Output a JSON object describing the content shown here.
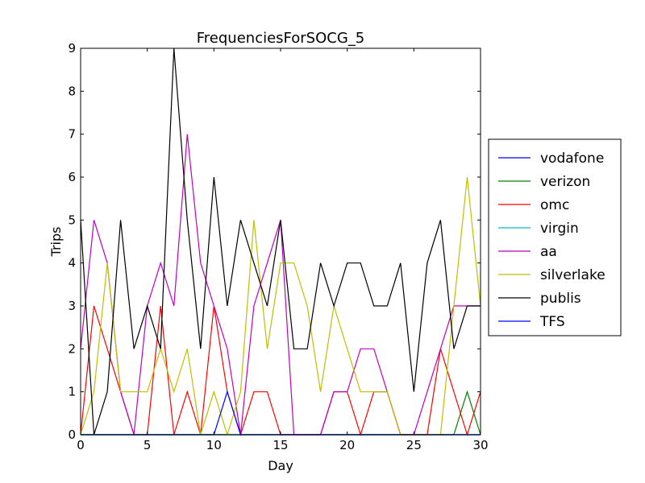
{
  "chart_data": {
    "type": "line",
    "title": "FrequenciesForSOCG_5",
    "xlabel": "Day",
    "ylabel": "Trips",
    "xlim": [
      0,
      30
    ],
    "ylim": [
      0,
      9
    ],
    "xticks": [
      0,
      5,
      10,
      15,
      20,
      25,
      30
    ],
    "yticks": [
      0,
      1,
      2,
      3,
      4,
      5,
      6,
      7,
      8,
      9
    ],
    "grid": false,
    "legend_position": "right, outside plot",
    "x": [
      0,
      1,
      2,
      3,
      4,
      5,
      6,
      7,
      8,
      9,
      10,
      11,
      12,
      13,
      14,
      15,
      16,
      17,
      18,
      19,
      20,
      21,
      22,
      23,
      24,
      25,
      26,
      27,
      28,
      29,
      30
    ],
    "series": [
      {
        "name": "vodafone",
        "color": "#0000ff",
        "values": [
          0,
          0,
          0,
          0,
          0,
          0,
          0,
          0,
          0,
          0,
          0,
          0,
          0,
          0,
          0,
          0,
          0,
          0,
          0,
          0,
          0,
          0,
          0,
          0,
          0,
          0,
          0,
          0,
          0,
          0,
          0
        ]
      },
      {
        "name": "verizon",
        "color": "#008000",
        "values": [
          0,
          0,
          0,
          0,
          0,
          0,
          0,
          0,
          0,
          0,
          0,
          0,
          0,
          0,
          0,
          0,
          0,
          0,
          0,
          0,
          0,
          0,
          0,
          0,
          0,
          0,
          0,
          0,
          0,
          1,
          0
        ]
      },
      {
        "name": "omc",
        "color": "#ff0000",
        "values": [
          0,
          3,
          2,
          1,
          0,
          0,
          3,
          0,
          1,
          0,
          3,
          1,
          0,
          1,
          1,
          0,
          0,
          0,
          0,
          1,
          1,
          0,
          1,
          1,
          0,
          0,
          0,
          2,
          1,
          0,
          1
        ]
      },
      {
        "name": "virgin",
        "color": "#00bfbf",
        "values": [
          0,
          0,
          0,
          0,
          0,
          0,
          0,
          0,
          0,
          0,
          0,
          0,
          0,
          0,
          0,
          0,
          0,
          0,
          0,
          0,
          0,
          0,
          0,
          0,
          0,
          0,
          0,
          0,
          0,
          0,
          0
        ]
      },
      {
        "name": "aa",
        "color": "#bf00bf",
        "values": [
          2,
          5,
          4,
          1,
          0,
          3,
          4,
          3,
          7,
          4,
          3,
          2,
          0,
          3,
          4,
          5,
          0,
          0,
          0,
          1,
          1,
          2,
          2,
          1,
          0,
          0,
          1,
          2,
          3,
          3,
          3
        ]
      },
      {
        "name": "silverlake",
        "color": "#bfbf00",
        "values": [
          0,
          1,
          4,
          1,
          1,
          1,
          2,
          1,
          2,
          0,
          1,
          0,
          1,
          5,
          2,
          4,
          4,
          3,
          1,
          3,
          2,
          1,
          1,
          1,
          0,
          0,
          0,
          0,
          3,
          6,
          3
        ]
      },
      {
        "name": "publis",
        "color": "#000000",
        "values": [
          5,
          0,
          1,
          5,
          2,
          3,
          2,
          9,
          5,
          2,
          6,
          3,
          5,
          4,
          3,
          5,
          2,
          2,
          4,
          3,
          4,
          4,
          3,
          3,
          4,
          1,
          4,
          5,
          2,
          3,
          3
        ]
      },
      {
        "name": "TFS",
        "color": "#0000ff",
        "values": [
          0,
          0,
          0,
          0,
          0,
          0,
          0,
          0,
          0,
          0,
          0,
          1,
          0,
          0,
          0,
          0,
          0,
          0,
          0,
          0,
          0,
          0,
          0,
          0,
          0,
          0,
          0,
          0,
          0,
          0,
          0
        ]
      }
    ]
  }
}
